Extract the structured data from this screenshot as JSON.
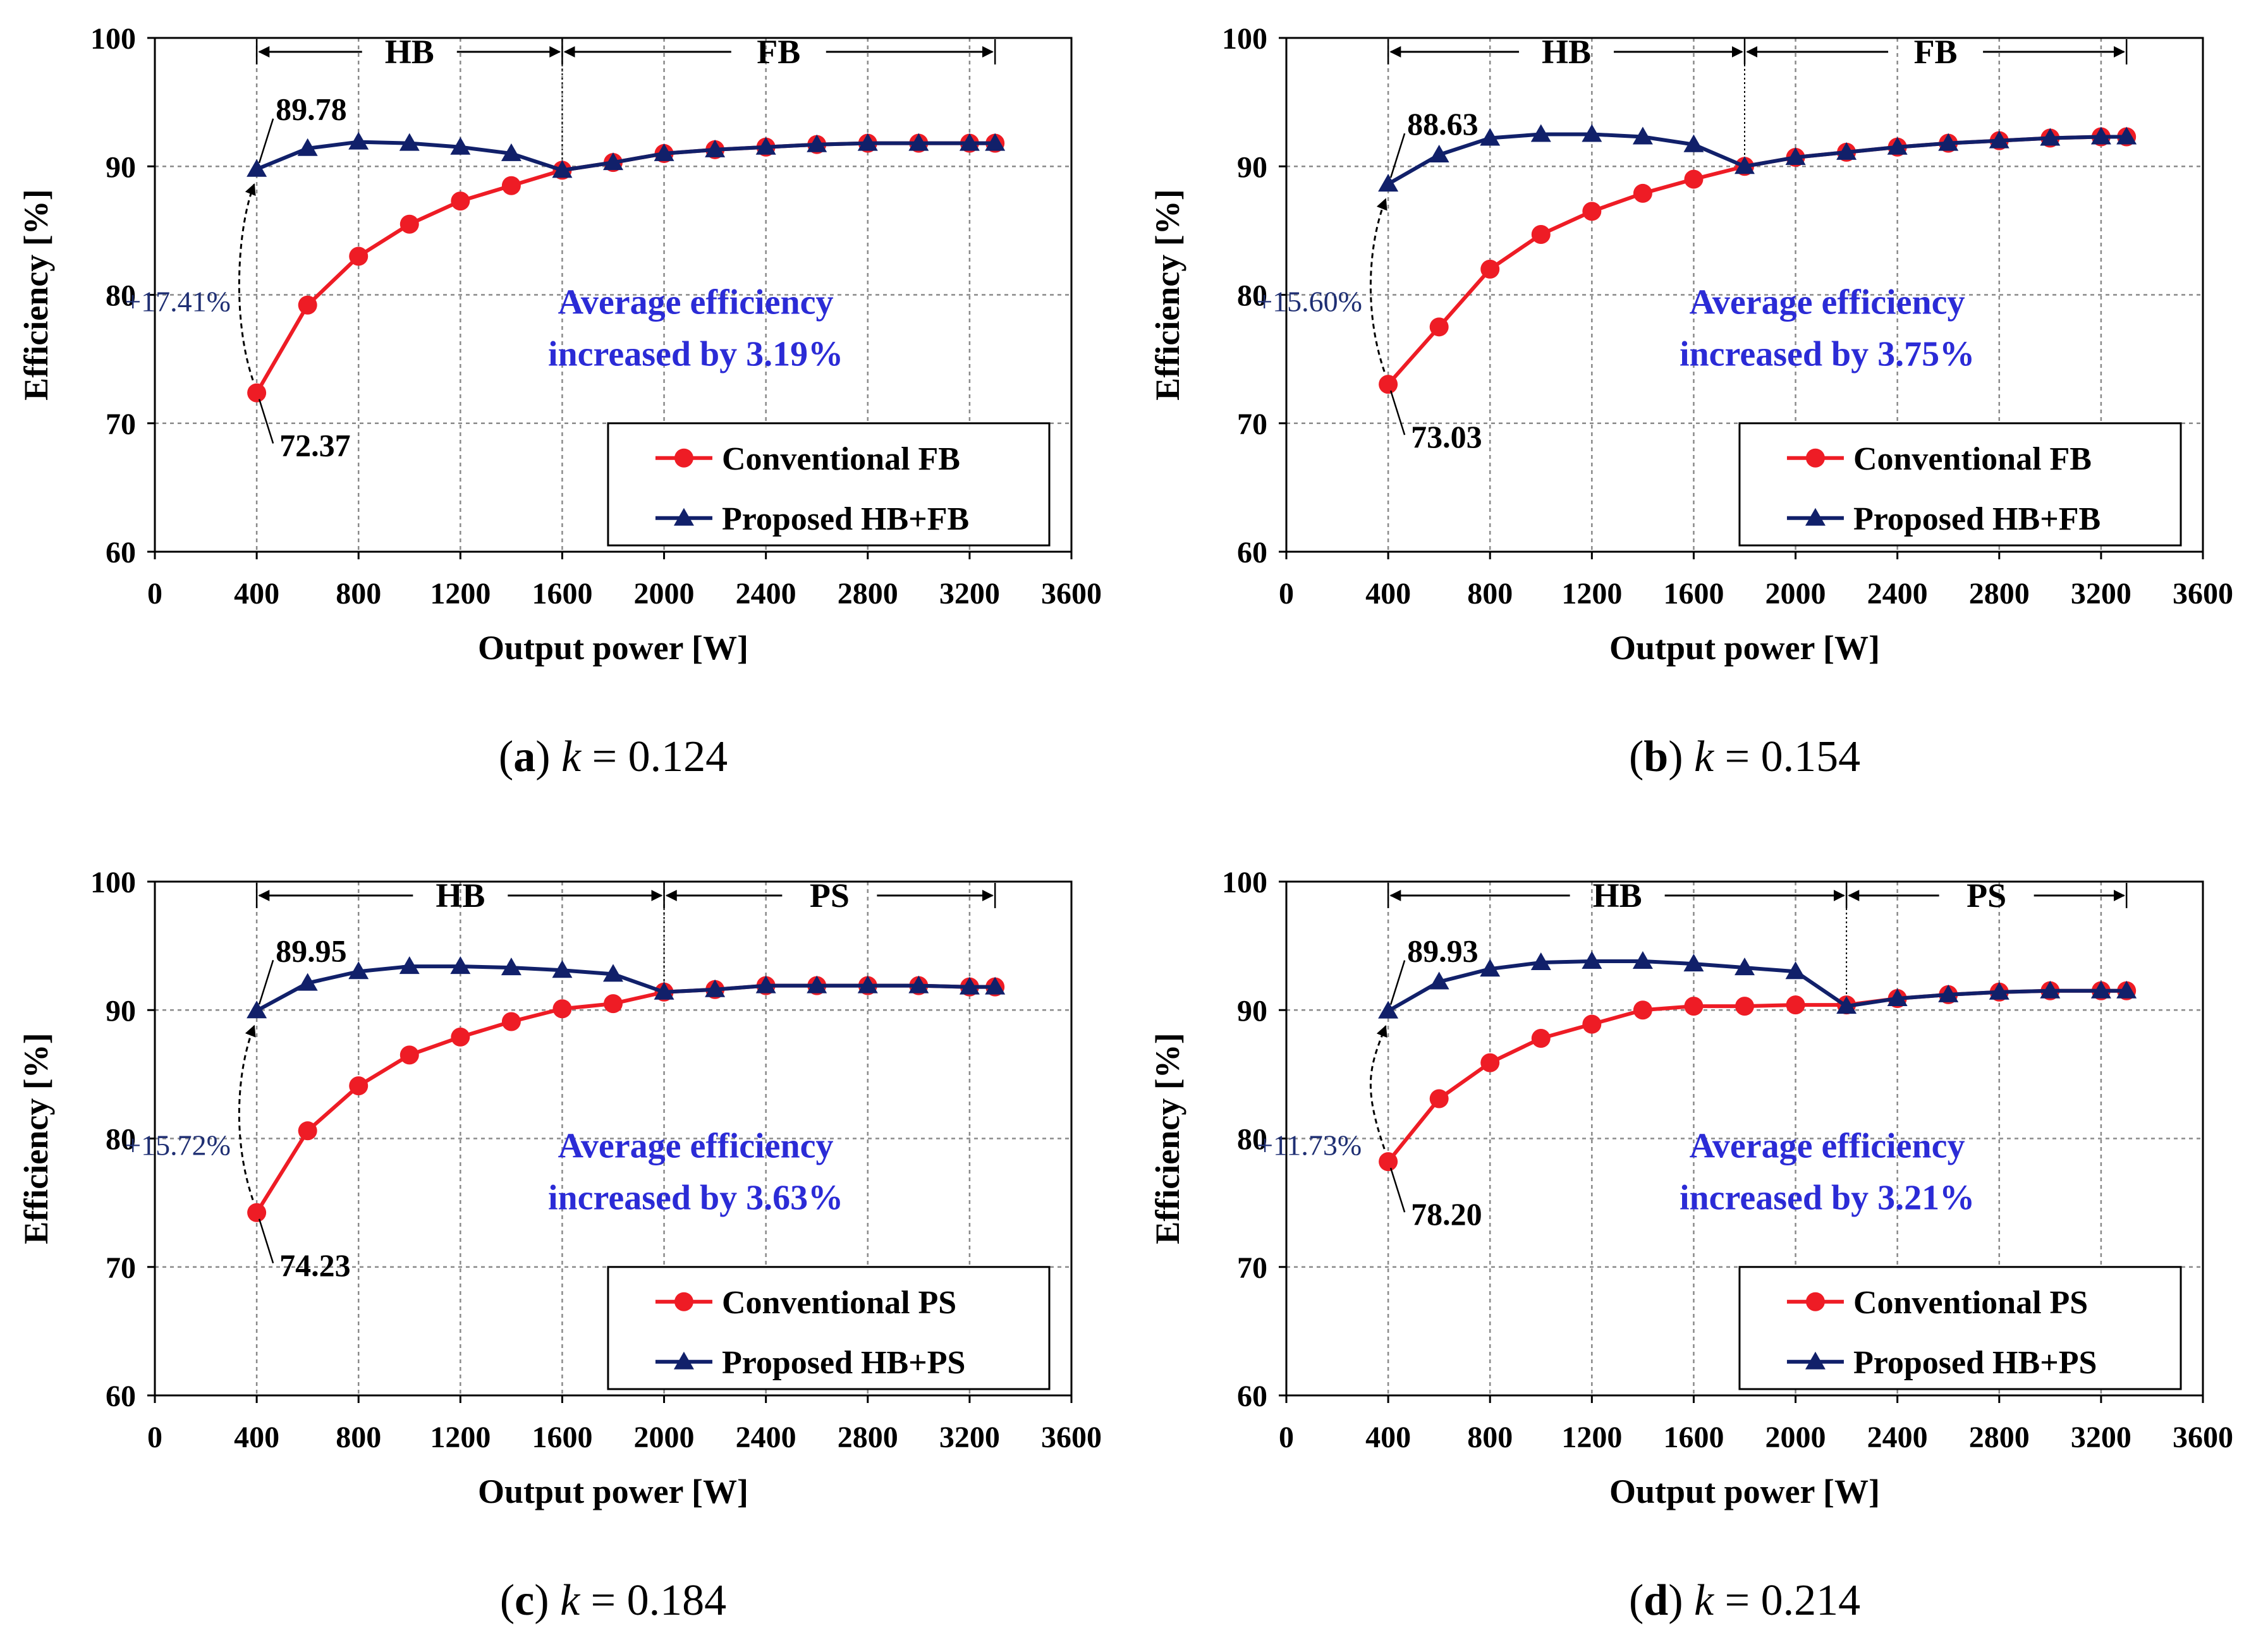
{
  "colors": {
    "conventional": "#ee1c25",
    "proposed": "#11206a",
    "annotation": "#2b2bd6",
    "gain": "#1f2f73",
    "grid": "#8a8a8a",
    "axis": "#000000"
  },
  "chart_data": [
    {
      "type": "line",
      "caption_letter": "a",
      "caption_k": "0.124",
      "xlabel": "Output  power [W]",
      "ylabel": "Efficiency [%]",
      "xlim": [
        0,
        3600
      ],
      "ylim": [
        60,
        100
      ],
      "xticks": [
        "0",
        "400",
        "800",
        "1200",
        "1600",
        "2000",
        "2400",
        "2800",
        "3200",
        "3600"
      ],
      "yticks": [
        "60",
        "70",
        "80",
        "90",
        "100"
      ],
      "mode_left": "HB",
      "mode_right": "FB",
      "switch_x": 1600,
      "x": [
        400,
        600,
        800,
        1000,
        1200,
        1400,
        1600,
        1800,
        2000,
        2200,
        2400,
        2600,
        2800,
        3000,
        3200,
        3300
      ],
      "series": [
        {
          "name": "Conventional FB",
          "marker": "circle",
          "values": [
            72.37,
            79.2,
            83.0,
            85.5,
            87.3,
            88.5,
            89.7,
            90.3,
            91.0,
            91.3,
            91.5,
            91.7,
            91.8,
            91.8,
            91.8,
            91.8
          ]
        },
        {
          "name": "Proposed HB+FB",
          "marker": "triangle",
          "values": [
            89.78,
            91.4,
            91.9,
            91.8,
            91.5,
            91.0,
            89.7,
            90.3,
            91.0,
            91.3,
            91.5,
            91.7,
            91.8,
            91.8,
            91.8,
            91.8
          ]
        }
      ],
      "label_top": "89.78",
      "label_bottom": "72.37",
      "gain_label": "+17.41%",
      "avg_line1": "Average efficiency",
      "avg_line2": "increased by 3.19%"
    },
    {
      "type": "line",
      "caption_letter": "b",
      "caption_k": "0.154",
      "xlabel": "Output  power [W]",
      "ylabel": "Efficiency [%]",
      "xlim": [
        0,
        3600
      ],
      "ylim": [
        60,
        100
      ],
      "xticks": [
        "0",
        "400",
        "800",
        "1200",
        "1600",
        "2000",
        "2400",
        "2800",
        "3200",
        "3600"
      ],
      "yticks": [
        "60",
        "70",
        "80",
        "90",
        "100"
      ],
      "mode_left": "HB",
      "mode_right": "FB",
      "switch_x": 1800,
      "x": [
        400,
        600,
        800,
        1000,
        1200,
        1400,
        1600,
        1800,
        2000,
        2200,
        2400,
        2600,
        2800,
        3000,
        3200,
        3300
      ],
      "series": [
        {
          "name": "Conventional FB",
          "marker": "circle",
          "values": [
            73.03,
            77.5,
            82.0,
            84.7,
            86.5,
            87.9,
            89.0,
            90.0,
            90.7,
            91.1,
            91.5,
            91.8,
            92.0,
            92.2,
            92.3,
            92.3
          ]
        },
        {
          "name": "Proposed HB+FB",
          "marker": "triangle",
          "values": [
            88.63,
            90.9,
            92.2,
            92.5,
            92.5,
            92.3,
            91.7,
            90.0,
            90.7,
            91.1,
            91.5,
            91.8,
            92.0,
            92.2,
            92.3,
            92.3
          ]
        }
      ],
      "label_top": "88.63",
      "label_bottom": "73.03",
      "gain_label": "+15.60%",
      "avg_line1": "Average efficiency",
      "avg_line2": "increased by 3.75%"
    },
    {
      "type": "line",
      "caption_letter": "c",
      "caption_k": "0.184",
      "xlabel": "Output  power [W]",
      "ylabel": "Efficiency [%]",
      "xlim": [
        0,
        3600
      ],
      "ylim": [
        60,
        100
      ],
      "xticks": [
        "0",
        "400",
        "800",
        "1200",
        "1600",
        "2000",
        "2400",
        "2800",
        "3200",
        "3600"
      ],
      "yticks": [
        "60",
        "70",
        "80",
        "90",
        "100"
      ],
      "mode_left": "HB",
      "mode_right": "PS",
      "switch_x": 2000,
      "x": [
        400,
        600,
        800,
        1000,
        1200,
        1400,
        1600,
        1800,
        2000,
        2200,
        2400,
        2600,
        2800,
        3000,
        3200,
        3300
      ],
      "series": [
        {
          "name": "Conventional PS",
          "marker": "circle",
          "values": [
            74.23,
            80.6,
            84.1,
            86.5,
            87.9,
            89.1,
            90.1,
            90.5,
            91.4,
            91.6,
            91.9,
            91.9,
            91.9,
            91.9,
            91.8,
            91.8
          ]
        },
        {
          "name": "Proposed HB+PS",
          "marker": "triangle",
          "values": [
            89.95,
            92.1,
            93.0,
            93.4,
            93.4,
            93.3,
            93.1,
            92.8,
            91.4,
            91.6,
            91.9,
            91.9,
            91.9,
            91.9,
            91.8,
            91.8
          ]
        }
      ],
      "label_top": "89.95",
      "label_bottom": "74.23",
      "gain_label": "+15.72%",
      "avg_line1": "Average efficiency",
      "avg_line2": "increased by 3.63%"
    },
    {
      "type": "line",
      "caption_letter": "d",
      "caption_k": "0.214",
      "xlabel": "Output  power [W]",
      "ylabel": "Efficiency [%]",
      "xlim": [
        0,
        3600
      ],
      "ylim": [
        60,
        100
      ],
      "xticks": [
        "0",
        "400",
        "800",
        "1200",
        "1600",
        "2000",
        "2400",
        "2800",
        "3200",
        "3600"
      ],
      "yticks": [
        "60",
        "70",
        "80",
        "90",
        "100"
      ],
      "mode_left": "HB",
      "mode_right": "PS",
      "switch_x": 2200,
      "x": [
        400,
        600,
        800,
        1000,
        1200,
        1400,
        1600,
        1800,
        2000,
        2200,
        2400,
        2600,
        2800,
        3000,
        3200,
        3300
      ],
      "series": [
        {
          "name": "Conventional PS",
          "marker": "circle",
          "values": [
            78.2,
            83.1,
            85.9,
            87.8,
            88.9,
            90.0,
            90.3,
            90.3,
            90.4,
            90.4,
            90.9,
            91.2,
            91.4,
            91.5,
            91.5,
            91.5
          ]
        },
        {
          "name": "Proposed HB+PS",
          "marker": "triangle",
          "values": [
            89.93,
            92.2,
            93.2,
            93.7,
            93.8,
            93.8,
            93.6,
            93.3,
            93.0,
            90.3,
            90.9,
            91.2,
            91.4,
            91.5,
            91.5,
            91.5
          ]
        }
      ],
      "label_top": "89.93",
      "label_bottom": "78.20",
      "gain_label": "+11.73%",
      "avg_line1": "Average efficiency",
      "avg_line2": "increased by 3.21%"
    }
  ]
}
